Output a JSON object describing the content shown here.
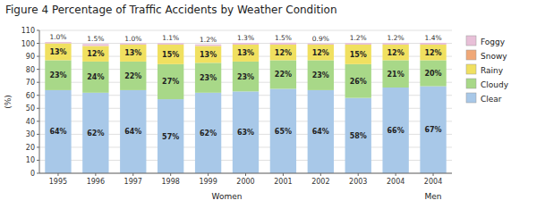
{
  "chart_data": {
    "type": "bar",
    "stacked": true,
    "title": "Figure 4  Percentage of Traffic Accidents by Weather Condition",
    "ylabel": "(%)",
    "categories": [
      "1995",
      "1996",
      "1997",
      "1998",
      "1999",
      "2000",
      "2001",
      "2002",
      "2003",
      "2004",
      "2004"
    ],
    "series": [
      {
        "name": "Clear",
        "color": "#a8c8e8",
        "values": [
          64,
          62,
          64,
          57,
          62,
          63,
          65,
          64,
          58,
          66,
          67
        ],
        "value_labels": [
          "64%",
          "62%",
          "64%",
          "57%",
          "62%",
          "63%",
          "65%",
          "64%",
          "58%",
          "66%",
          "67%"
        ]
      },
      {
        "name": "Cloudy",
        "color": "#a8d888",
        "values": [
          23,
          24,
          22,
          27,
          23,
          23,
          22,
          23,
          26,
          21,
          20
        ],
        "value_labels": [
          "23%",
          "24%",
          "22%",
          "27%",
          "23%",
          "23%",
          "22%",
          "23%",
          "26%",
          "21%",
          "20%"
        ]
      },
      {
        "name": "Rainy",
        "color": "#f0e060",
        "values": [
          13,
          12,
          13,
          15,
          13,
          13,
          12,
          12,
          15,
          12,
          12
        ],
        "value_labels": [
          "13%",
          "12%",
          "13%",
          "15%",
          "13%",
          "13%",
          "12%",
          "12%",
          "15%",
          "12%",
          "12%"
        ]
      },
      {
        "name": "Snowy",
        "color": "#f0a878",
        "values": [
          0.0,
          0.0,
          0.0,
          0.0,
          0.0,
          0.0,
          0.0,
          0.0,
          0.0,
          0.0,
          0.0
        ]
      },
      {
        "name": "Foggy",
        "color": "#e8c0d8",
        "values": [
          1.0,
          1.5,
          1.0,
          1.1,
          1.2,
          1.3,
          1.5,
          0.9,
          1.2,
          1.2,
          1.4
        ],
        "value_labels": [
          "1.0%",
          "1.5%",
          "1.0%",
          "1.1%",
          "1.2%",
          "1.3%",
          "1.5%",
          "0.9%",
          "1.2%",
          "1.2%",
          "1.4%"
        ]
      }
    ],
    "ylim": [
      0,
      110
    ],
    "yticks": [
      0,
      10,
      20,
      30,
      40,
      50,
      60,
      70,
      80,
      90,
      100,
      110
    ],
    "grid": true,
    "legend": "right",
    "data_labels": true,
    "annotations": [
      {
        "text": "Women"
      },
      {
        "text": "Men"
      }
    ]
  }
}
